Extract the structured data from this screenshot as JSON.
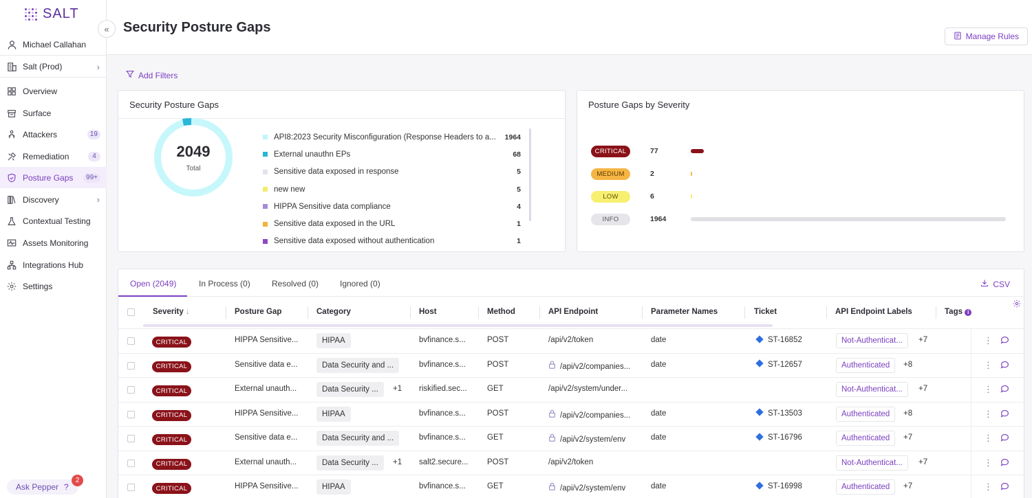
{
  "app": {
    "logo_text": "SALT"
  },
  "sidebar": {
    "user": "Michael Callahan",
    "org": "Salt (Prod)",
    "items": [
      {
        "label": "Overview",
        "icon": "overview-icon",
        "badge": ""
      },
      {
        "label": "Surface",
        "icon": "surface-icon",
        "badge": ""
      },
      {
        "label": "Attackers",
        "icon": "attackers-icon",
        "badge": "19"
      },
      {
        "label": "Remediation",
        "icon": "remediation-icon",
        "badge": "4"
      },
      {
        "label": "Posture Gaps",
        "icon": "shield-icon",
        "badge": "99+"
      },
      {
        "label": "Discovery",
        "icon": "discovery-icon",
        "badge": ""
      },
      {
        "label": "Contextual Testing",
        "icon": "flask-icon",
        "badge": ""
      },
      {
        "label": "Assets Monitoring",
        "icon": "monitor-icon",
        "badge": ""
      },
      {
        "label": "Integrations Hub",
        "icon": "integrations-icon",
        "badge": ""
      },
      {
        "label": "Settings",
        "icon": "gear-icon",
        "badge": ""
      }
    ],
    "ask_pepper": {
      "label": "Ask Pepper",
      "count": "2",
      "help": "?"
    }
  },
  "header": {
    "title": "Security Posture Gaps",
    "manage_rules": "Manage Rules"
  },
  "filters": {
    "add_filters": "Add Filters"
  },
  "summary_card": {
    "title": "Security Posture Gaps",
    "total_value": "2049",
    "total_label": "Total",
    "legend": [
      {
        "label": "API8:2023 Security Misconfiguration (Response Headers to a...",
        "value": "1964",
        "color": "#bff6fb"
      },
      {
        "label": "External unauthn EPs",
        "value": "68",
        "color": "#2bb5d8"
      },
      {
        "label": "Sensitive data exposed in response",
        "value": "5",
        "color": "#e3e2ef"
      },
      {
        "label": "new new",
        "value": "5",
        "color": "#f2ec6e"
      },
      {
        "label": "HIPPA Sensitive data compliance",
        "value": "4",
        "color": "#a58bd9"
      },
      {
        "label": "Sensitive data exposed in the URL",
        "value": "1",
        "color": "#f3b23a"
      },
      {
        "label": "Sensitive data exposed without authentication",
        "value": "1",
        "color": "#8a49c9"
      }
    ]
  },
  "severity_card": {
    "title": "Posture Gaps by Severity",
    "rows": [
      {
        "label": "CRITICAL",
        "count": "77",
        "value": 77,
        "bg": "#8a1219",
        "fg": "#ffffff",
        "bar": "#8a1219"
      },
      {
        "label": "MEDIUM",
        "count": "2",
        "value": 2,
        "bg": "#f5b544",
        "fg": "#5a3a00",
        "bar": "#f5b544"
      },
      {
        "label": "LOW",
        "count": "6",
        "value": 6,
        "bg": "#f7ef70",
        "fg": "#5a5200",
        "bar": "#f7ef70"
      },
      {
        "label": "INFO",
        "count": "1964",
        "value": 1964,
        "bg": "#e6e6ea",
        "fg": "#555555",
        "bar": "#e0e0e4"
      }
    ]
  },
  "table": {
    "tabs": [
      "Open (2049)",
      "In Process (0)",
      "Resolved (0)",
      "Ignored (0)"
    ],
    "csv": "CSV",
    "columns": [
      "Severity",
      "Posture Gap",
      "Category",
      "Host",
      "Method",
      "API Endpoint",
      "Parameter Names",
      "Ticket",
      "API Endpoint Labels",
      "Tags"
    ],
    "rows": [
      {
        "severity": "CRITICAL",
        "gap": "HIPPA Sensitive...",
        "category": "HIPAA",
        "category_extra": "",
        "host": "bvfinance.s...",
        "method": "POST",
        "endpoint": "/api/v2/token",
        "locked": false,
        "params": "date",
        "ticket": "ST-16852",
        "label": "Not-Authenticat...",
        "label_extra": "+7"
      },
      {
        "severity": "CRITICAL",
        "gap": "Sensitive data e...",
        "category": "Data Security and ...",
        "category_extra": "",
        "host": "bvfinance.s...",
        "method": "POST",
        "endpoint": "/api/v2/companies...",
        "locked": true,
        "params": "date",
        "ticket": "ST-12657",
        "label": "Authenticated",
        "label_extra": "+8"
      },
      {
        "severity": "CRITICAL",
        "gap": "External unauth...",
        "category": "Data Security ...",
        "category_extra": "+1",
        "host": "riskified.sec...",
        "method": "GET",
        "endpoint": "/api/v2/system/under...",
        "locked": false,
        "params": "",
        "ticket": "",
        "label": "Not-Authenticat...",
        "label_extra": "+7"
      },
      {
        "severity": "CRITICAL",
        "gap": "HIPPA Sensitive...",
        "category": "HIPAA",
        "category_extra": "",
        "host": "bvfinance.s...",
        "method": "POST",
        "endpoint": "/api/v2/companies...",
        "locked": true,
        "params": "date",
        "ticket": "ST-13503",
        "label": "Authenticated",
        "label_extra": "+8"
      },
      {
        "severity": "CRITICAL",
        "gap": "Sensitive data e...",
        "category": "Data Security and ...",
        "category_extra": "",
        "host": "bvfinance.s...",
        "method": "GET",
        "endpoint": "/api/v2/system/env",
        "locked": true,
        "params": "date",
        "ticket": "ST-16796",
        "label": "Authenticated",
        "label_extra": "+7"
      },
      {
        "severity": "CRITICAL",
        "gap": "External unauth...",
        "category": "Data Security ...",
        "category_extra": "+1",
        "host": "salt2.secure...",
        "method": "POST",
        "endpoint": "/api/v2/token",
        "locked": false,
        "params": "",
        "ticket": "",
        "label": "Not-Authenticat...",
        "label_extra": "+7"
      },
      {
        "severity": "CRITICAL",
        "gap": "HIPPA Sensitive...",
        "category": "HIPAA",
        "category_extra": "",
        "host": "bvfinance.s...",
        "method": "GET",
        "endpoint": "/api/v2/system/env",
        "locked": true,
        "params": "date",
        "ticket": "ST-16998",
        "label": "Authenticated",
        "label_extra": "+7"
      }
    ]
  }
}
